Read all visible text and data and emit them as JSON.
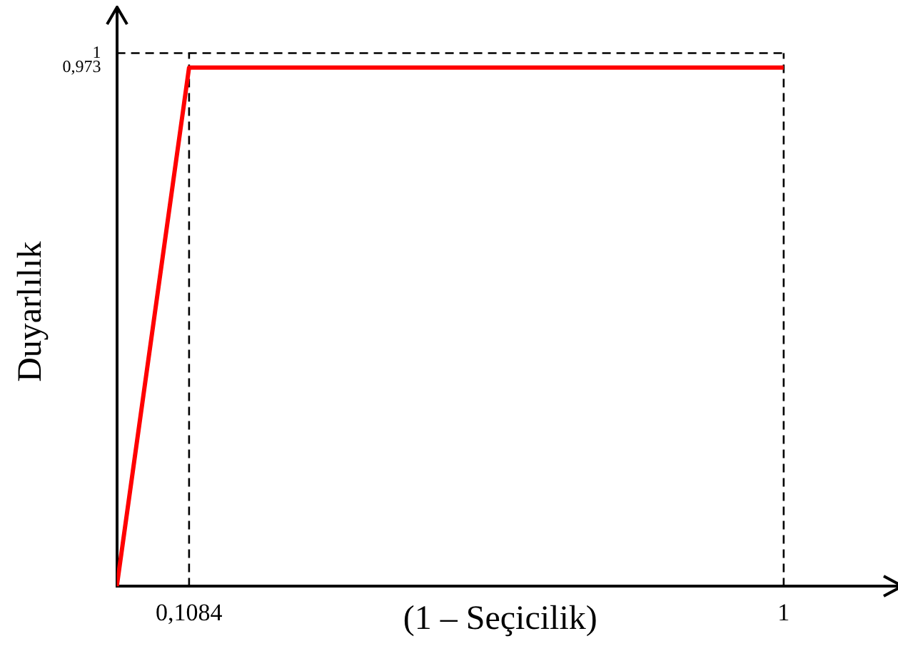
{
  "chart_data": {
    "type": "line",
    "xlabel": "(1 – Seçicilik)",
    "ylabel": "Duyarlılık",
    "x": [
      0,
      0.1084,
      1
    ],
    "series": [
      {
        "color": "#ff0000",
        "values": [
          0,
          0.973,
          0.973
        ]
      }
    ],
    "xlim": [
      0,
      1.15
    ],
    "ylim": [
      0,
      1.03
    ],
    "xticks": [
      {
        "value": 0.1084,
        "label": "0,1084"
      },
      1
    ],
    "yticks": [
      {
        "value": 0.973,
        "label": "0,973"
      },
      1
    ],
    "ref_lines": [
      {
        "axis": "x",
        "value": 0.1084,
        "line_style": "dashed",
        "color": "#000000"
      },
      {
        "axis": "x",
        "value": 1,
        "line_style": "dashed",
        "color": "#000000"
      },
      {
        "axis": "y",
        "value": 1,
        "line_style": "dashed",
        "color": "#000000"
      }
    ],
    "grid": false,
    "legend": false,
    "marker": "none",
    "line_style": "solid"
  }
}
